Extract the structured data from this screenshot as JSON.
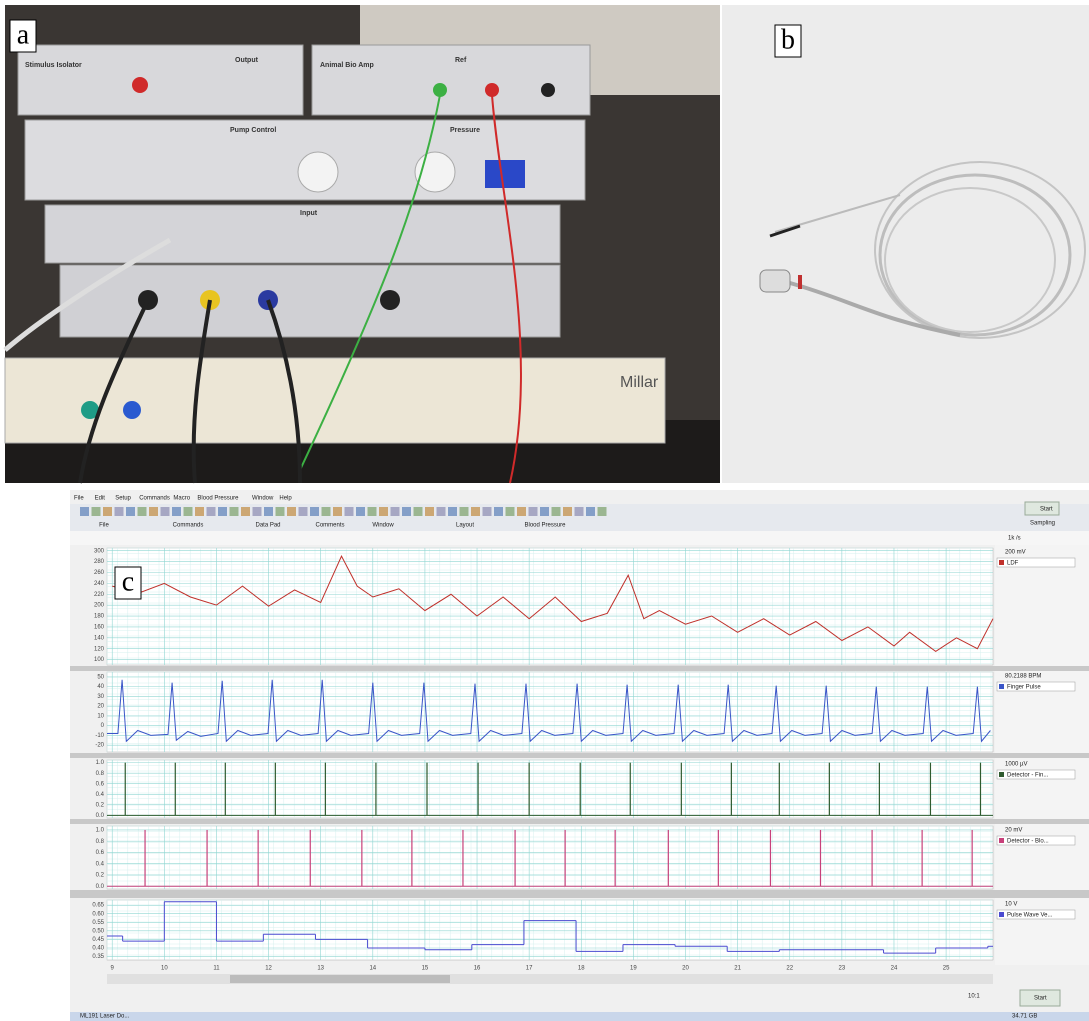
{
  "panels": {
    "a": "a",
    "b": "b",
    "c": "c"
  },
  "photo_a": {
    "labels": [
      "Stimulus Isolator",
      "Output",
      "Animal Bio Amp",
      "Ref",
      "Pump Control",
      "Pressure",
      "Input",
      "Millar"
    ]
  },
  "screenshot": {
    "menu": [
      "File",
      "Edit",
      "Setup",
      "Commands",
      "Macro",
      "Blood Pressure",
      "Window",
      "Help"
    ],
    "toolbar_groups": [
      "File",
      "Commands",
      "Data Pad",
      "Comments",
      "Window",
      "Layout",
      "Blood Pressure"
    ],
    "start": "Start",
    "sampling": "Sampling",
    "rate": "1k /s",
    "zoom": "10:1",
    "disk": "34.71 GB",
    "taskbar": "ML191 Laser Do..."
  },
  "chart_data": [
    {
      "type": "line",
      "channel": "LDF",
      "scale": "200 mV",
      "color": "#c0302a",
      "grid": true,
      "xlim": [
        8.9,
        25.9
      ],
      "ylim": [
        90,
        305
      ],
      "yticks": [
        300,
        280,
        260,
        240,
        220,
        200,
        180,
        160,
        140,
        120,
        100
      ],
      "x": [
        9,
        9.5,
        10,
        10.5,
        11,
        11.5,
        12,
        12.5,
        13,
        13.4,
        13.7,
        14,
        14.5,
        15,
        15.5,
        16,
        16.5,
        17,
        17.5,
        18,
        18.5,
        18.9,
        19.2,
        19.5,
        20,
        20.5,
        21,
        21.5,
        22,
        22.5,
        23,
        23.5,
        24,
        24.3,
        24.8,
        25.2,
        25.6,
        25.9
      ],
      "values": [
        235,
        222,
        240,
        215,
        200,
        235,
        198,
        228,
        205,
        290,
        235,
        215,
        230,
        190,
        220,
        180,
        215,
        175,
        215,
        170,
        185,
        255,
        175,
        190,
        165,
        180,
        150,
        175,
        145,
        170,
        135,
        160,
        125,
        150,
        115,
        140,
        120,
        175
      ]
    },
    {
      "type": "line",
      "channel": "Finger Pulse",
      "scale": "80.2188 BPM",
      "color": "#3a55c8",
      "grid": true,
      "xlim": [
        8.9,
        25.9
      ],
      "ylim": [
        -27,
        55
      ],
      "yticks": [
        50,
        40,
        30,
        20,
        10,
        0,
        -10,
        -20
      ],
      "x": [
        8.9,
        9.11,
        9.19,
        9.27,
        9.49,
        9.74,
        10.07,
        10.15,
        10.23,
        10.45,
        10.7,
        11.03,
        11.11,
        11.19,
        11.41,
        11.66,
        11.99,
        12.07,
        12.15,
        12.37,
        12.62,
        12.95,
        13.03,
        13.11,
        13.33,
        13.58,
        13.92,
        14.0,
        14.08,
        14.3,
        14.55,
        14.9,
        14.98,
        15.06,
        15.28,
        15.53,
        15.88,
        15.96,
        16.04,
        16.26,
        16.51,
        16.86,
        16.94,
        17.02,
        17.24,
        17.49,
        17.84,
        17.92,
        18.0,
        18.22,
        18.47,
        18.8,
        18.88,
        18.96,
        19.18,
        19.43,
        19.78,
        19.86,
        19.94,
        20.16,
        20.41,
        20.74,
        20.82,
        20.9,
        21.12,
        21.37,
        21.66,
        21.74,
        21.82,
        22.04,
        22.29,
        22.62,
        22.7,
        22.78,
        23.0,
        23.25,
        23.58,
        23.66,
        23.74,
        23.96,
        24.21,
        24.56,
        24.64,
        24.72,
        24.94,
        25.19,
        25.52,
        25.6,
        25.68,
        25.85
      ],
      "values": [
        -8,
        -8,
        47,
        -16,
        -5,
        -10,
        -9,
        44,
        -15,
        -6,
        -11,
        -8,
        46,
        -16,
        -5,
        -10,
        -8,
        47,
        -16,
        -5,
        -10,
        -8,
        47,
        -16,
        -5,
        -10,
        -8,
        44,
        -16,
        -5,
        -10,
        -8,
        44,
        -16,
        -5,
        -10,
        -8,
        43,
        -16,
        -5,
        -10,
        -8,
        43,
        -16,
        -5,
        -10,
        -8,
        43,
        -16,
        -5,
        -10,
        -8,
        42,
        -16,
        -5,
        -10,
        -8,
        42,
        -16,
        -5,
        -10,
        -8,
        42,
        -16,
        -5,
        -10,
        -8,
        41,
        -16,
        -5,
        -10,
        -8,
        41,
        -16,
        -5,
        -10,
        -8,
        40,
        -16,
        -5,
        -10,
        -8,
        40,
        -16,
        -5,
        -10,
        -8,
        40,
        -16,
        -5
      ]
    },
    {
      "type": "stem",
      "channel": "Detector - Fin...",
      "scale": "1000 µV",
      "color": "#2e5a2e",
      "grid": true,
      "xlim": [
        8.9,
        25.9
      ],
      "ylim": [
        -0.05,
        1.05
      ],
      "yticks": [
        {
          "value": 1,
          "label": "1.0"
        },
        0.8,
        0.6,
        0.4,
        0.2,
        {
          "value": 0,
          "label": "0.0"
        }
      ],
      "x": [
        9.25,
        10.21,
        11.17,
        12.13,
        13.09,
        14.06,
        15.04,
        16.02,
        17.0,
        17.98,
        18.94,
        19.92,
        20.88,
        21.8,
        22.76,
        23.72,
        24.7,
        25.66
      ],
      "values": [
        1,
        1,
        1,
        1,
        1,
        1,
        1,
        1,
        1,
        1,
        1,
        1,
        1,
        1,
        1,
        1,
        1,
        1
      ]
    },
    {
      "type": "stem",
      "channel": "Detector - Blo...",
      "scale": "20 mV",
      "color": "#c8407a",
      "grid": true,
      "xlim": [
        8.9,
        25.9
      ],
      "ylim": [
        -0.05,
        1.07
      ],
      "yticks": [
        {
          "value": 1,
          "label": "1.0"
        },
        0.8,
        0.6,
        0.4,
        0.2,
        {
          "value": 0,
          "label": "0.0"
        }
      ],
      "x": [
        9.63,
        10.82,
        11.8,
        12.8,
        13.79,
        14.75,
        15.73,
        16.73,
        17.69,
        18.65,
        19.67,
        20.63,
        21.63,
        22.59,
        23.58,
        24.54,
        25.5
      ],
      "values": [
        1,
        1,
        1,
        1,
        1,
        1,
        1,
        1,
        1,
        1,
        1,
        1,
        1,
        1,
        1,
        1,
        1
      ]
    },
    {
      "type": "step",
      "channel": "Pulse Wave Ve...",
      "scale": "10 V",
      "color": "#4a4ad0",
      "grid": true,
      "xlim": [
        8.9,
        25.9
      ],
      "ylim": [
        0.33,
        0.68
      ],
      "yticks": [
        0.65,
        {
          "value": 0.6,
          "label": "0.60"
        },
        0.55,
        {
          "value": 0.5,
          "label": "0.50"
        },
        0.45,
        {
          "value": 0.4,
          "label": "0.40"
        },
        0.35
      ],
      "xticks": [
        9,
        10,
        11,
        12,
        13,
        14,
        15,
        16,
        17,
        18,
        19,
        20,
        21,
        22,
        23,
        24,
        25
      ],
      "x": [
        8.9,
        9.2,
        10.0,
        11.0,
        11.9,
        12.9,
        13.9,
        15.0,
        15.9,
        16.9,
        17.9,
        18.8,
        19.8,
        20.8,
        21.8,
        22.8,
        23.8,
        24.8,
        25.8
      ],
      "values": [
        0.47,
        0.44,
        0.67,
        0.44,
        0.48,
        0.45,
        0.4,
        0.39,
        0.42,
        0.56,
        0.38,
        0.42,
        0.41,
        0.38,
        0.39,
        0.39,
        0.37,
        0.4,
        0.41
      ]
    }
  ]
}
